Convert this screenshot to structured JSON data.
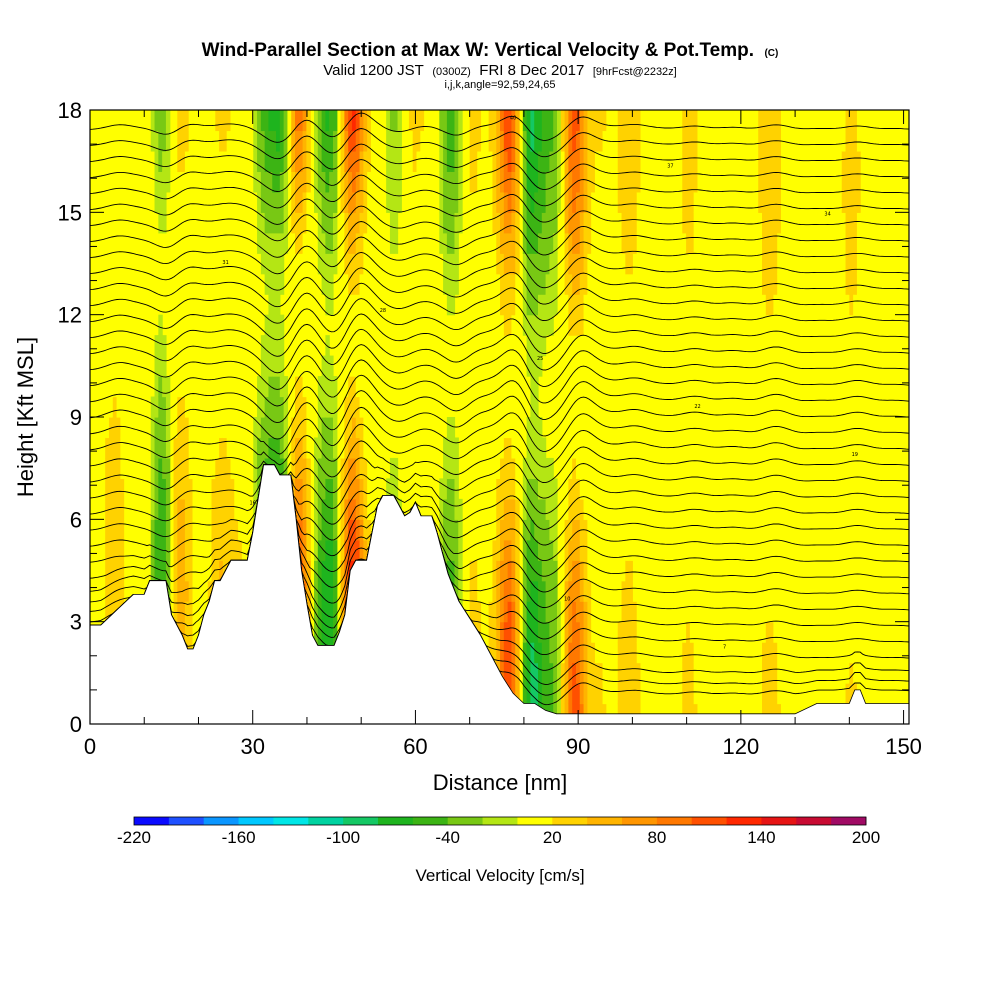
{
  "chart_data": {
    "type": "heatmap",
    "title": "Wind-Parallel Section at Max W: Vertical Velocity & Pot.Temp.",
    "title_mark": "(C)",
    "subtitle_main": "Valid 1200 JST",
    "subtitle_utc": "(0300Z)",
    "subtitle_date": "FRI 8 Dec 2017",
    "subtitle_fcst": "[9hrFcst@2232z]",
    "subsubtitle": "i,j,k,angle=92,59,24,65",
    "xlabel": "Distance [nm]",
    "ylabel": "Height [Kft MSL]",
    "xlim": [
      0,
      151
    ],
    "ylim": [
      0,
      18
    ],
    "x_ticks": [
      "0",
      "30",
      "60",
      "90",
      "120",
      "150"
    ],
    "y_ticks": [
      "0",
      "3",
      "6",
      "9",
      "12",
      "15",
      "18"
    ],
    "colorbar": {
      "label": "Vertical Velocity [cm/s]",
      "range": [
        -220,
        200
      ],
      "step": 20,
      "tick_labels": [
        "-220",
        "-160",
        "-100",
        "-40",
        "20",
        "80",
        "140",
        "200"
      ],
      "colors": [
        "#0a0aff",
        "#1e50ff",
        "#0a96ff",
        "#00c8ff",
        "#00e6e6",
        "#00d2a0",
        "#14c864",
        "#1eb41e",
        "#3cb414",
        "#78c814",
        "#b4e614",
        "#ffff00",
        "#ffd200",
        "#ffb400",
        "#ff9600",
        "#ff7800",
        "#ff5000",
        "#ff2800",
        "#e61414",
        "#c80a32",
        "#a00a64",
        "#780a8c"
      ]
    },
    "terrain_kft": [
      [
        0,
        2.9
      ],
      [
        2,
        2.9
      ],
      [
        4,
        3.2
      ],
      [
        6,
        3.5
      ],
      [
        8,
        3.8
      ],
      [
        10,
        3.8
      ],
      [
        11,
        4.2
      ],
      [
        14,
        4.2
      ],
      [
        15,
        3.2
      ],
      [
        17,
        2.6
      ],
      [
        18,
        2.2
      ],
      [
        19,
        2.2
      ],
      [
        20,
        2.6
      ],
      [
        21,
        3.2
      ],
      [
        22,
        3.6
      ],
      [
        23,
        4.2
      ],
      [
        24,
        4.2
      ],
      [
        26,
        4.8
      ],
      [
        29,
        4.8
      ],
      [
        30,
        5.6
      ],
      [
        32,
        7.6
      ],
      [
        34,
        7.6
      ],
      [
        35,
        7.3
      ],
      [
        37,
        7.3
      ],
      [
        38,
        6.0
      ],
      [
        39,
        4.5
      ],
      [
        40,
        3.5
      ],
      [
        41,
        2.6
      ],
      [
        42,
        2.3
      ],
      [
        45,
        2.3
      ],
      [
        46,
        2.7
      ],
      [
        47,
        3.2
      ],
      [
        48,
        4.5
      ],
      [
        49,
        4.8
      ],
      [
        51,
        4.8
      ],
      [
        52,
        5.6
      ],
      [
        53,
        6.4
      ],
      [
        54,
        6.7
      ],
      [
        56,
        6.7
      ],
      [
        57,
        6.4
      ],
      [
        58,
        6.1
      ],
      [
        59,
        6.2
      ],
      [
        60,
        6.5
      ],
      [
        61,
        6.1
      ],
      [
        63,
        6.1
      ],
      [
        64,
        5.6
      ],
      [
        65,
        5.0
      ],
      [
        66,
        4.4
      ],
      [
        67,
        4.0
      ],
      [
        68,
        3.6
      ],
      [
        70,
        3.1
      ],
      [
        72,
        2.6
      ],
      [
        74,
        2.0
      ],
      [
        76,
        1.4
      ],
      [
        78,
        0.9
      ],
      [
        80,
        0.6
      ],
      [
        82,
        0.6
      ],
      [
        84,
        0.4
      ],
      [
        86,
        0.3
      ],
      [
        88,
        0.3
      ],
      [
        90,
        0.3
      ],
      [
        100,
        0.3
      ],
      [
        110,
        0.3
      ],
      [
        120,
        0.3
      ],
      [
        130,
        0.3
      ],
      [
        134,
        0.6
      ],
      [
        140,
        0.6
      ],
      [
        141,
        1.0
      ],
      [
        142,
        1.0
      ],
      [
        143,
        0.6
      ],
      [
        151,
        0.6
      ]
    ],
    "w_columns": [
      {
        "x": 4,
        "w": 40
      },
      {
        "x": 10,
        "w": 20
      },
      {
        "x": 13,
        "w": -70
      },
      {
        "x": 16,
        "w": 60
      },
      {
        "x": 20,
        "w": 10
      },
      {
        "x": 24,
        "w": 40
      },
      {
        "x": 28,
        "w": 20
      },
      {
        "x": 32,
        "w": -60
      },
      {
        "x": 35,
        "w": -90
      },
      {
        "x": 38,
        "w": 130
      },
      {
        "x": 41,
        "w": -20
      },
      {
        "x": 44,
        "w": -80
      },
      {
        "x": 48,
        "w": 150
      },
      {
        "x": 52,
        "w": 10
      },
      {
        "x": 56,
        "w": -30
      },
      {
        "x": 59,
        "w": 30
      },
      {
        "x": 63,
        "w": 20
      },
      {
        "x": 66,
        "w": -60
      },
      {
        "x": 70,
        "w": 30
      },
      {
        "x": 74,
        "w": 10
      },
      {
        "x": 77,
        "w": 120
      },
      {
        "x": 81,
        "w": -90
      },
      {
        "x": 85,
        "w": -40
      },
      {
        "x": 89,
        "w": 110
      },
      {
        "x": 94,
        "w": 20
      },
      {
        "x": 99,
        "w": 40
      },
      {
        "x": 104,
        "w": 10
      },
      {
        "x": 110,
        "w": 30
      },
      {
        "x": 117,
        "w": 20
      },
      {
        "x": 125,
        "w": 40
      },
      {
        "x": 133,
        "w": 10
      },
      {
        "x": 140,
        "w": 30
      },
      {
        "x": 147,
        "w": 10
      }
    ],
    "theta_levels_c": [
      4,
      5,
      6,
      7,
      8,
      9,
      10,
      11,
      12,
      13,
      14,
      15,
      16,
      17,
      18,
      19,
      20,
      21,
      22,
      23,
      24,
      25,
      26,
      27,
      28,
      29,
      30,
      31,
      32,
      33,
      34,
      35,
      36,
      37,
      38,
      39,
      40
    ]
  }
}
